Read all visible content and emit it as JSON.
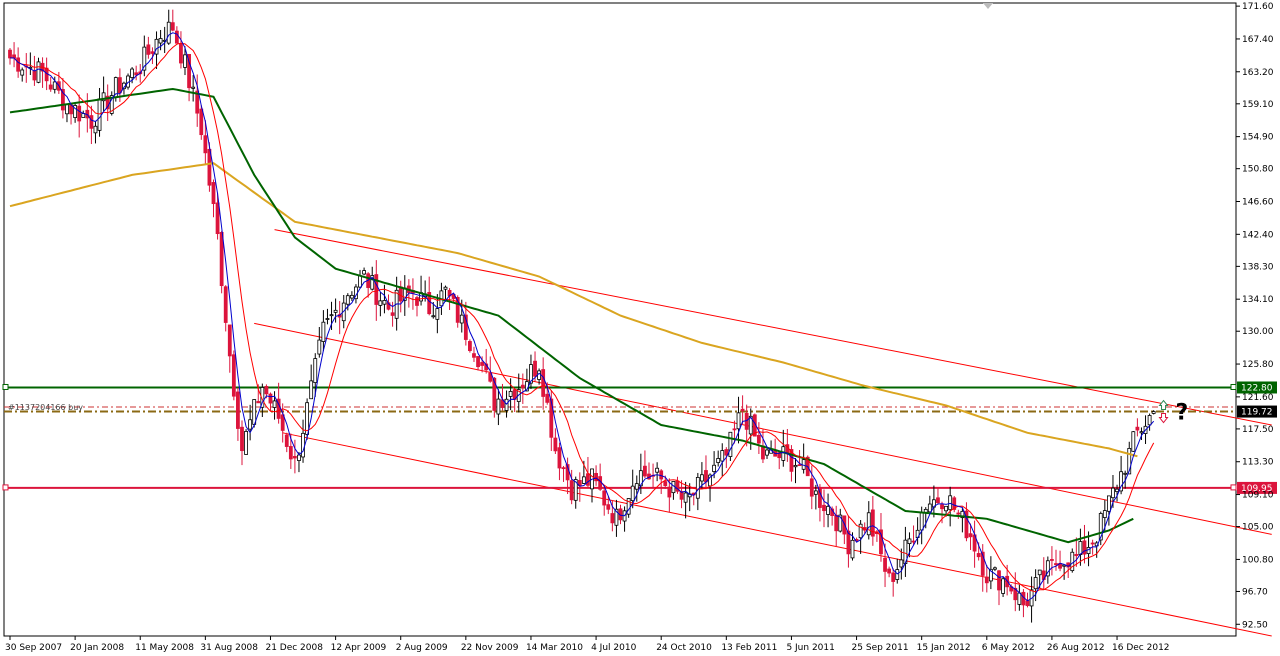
{
  "chart_data": {
    "type": "candlestick",
    "ylim": [
      91.0,
      172.0
    ],
    "y_ticks": [
      "171.60",
      "167.40",
      "163.20",
      "159.10",
      "154.90",
      "150.80",
      "146.60",
      "142.40",
      "138.30",
      "134.10",
      "130.00",
      "125.80",
      "121.60",
      "117.50",
      "113.30",
      "109.10",
      "105.00",
      "100.80",
      "96.70",
      "92.50"
    ],
    "y_tick_values": [
      171.6,
      167.4,
      163.2,
      159.1,
      154.9,
      150.8,
      146.6,
      142.4,
      138.3,
      134.1,
      130.0,
      125.8,
      121.6,
      117.5,
      113.3,
      109.1,
      105.0,
      100.8,
      96.7,
      92.5
    ],
    "x_ticks": [
      "30 Sep 2007",
      "20 Jan 2008",
      "11 May 2008",
      "31 Aug 2008",
      "21 Dec 2008",
      "12 Apr 2009",
      "2 Aug 2009",
      "22 Nov 2009",
      "14 Mar 2010",
      "4 Jul 2010",
      "24 Oct 2010",
      "13 Feb 2011",
      "5 Jun 2011",
      "25 Sep 2011",
      "15 Jan 2012",
      "6 May 2012",
      "26 Aug 2012",
      "16 Dec 2012"
    ],
    "x_tick_index": [
      0,
      16,
      32,
      48,
      64,
      80,
      96,
      112,
      128,
      144,
      160,
      176,
      192,
      208,
      224,
      240,
      256,
      272
    ],
    "bars_total": 282,
    "price_labels": {
      "green_level": "122.80",
      "red_level": "109.95",
      "current": "119.72"
    },
    "green_level": 122.8,
    "red_level": 109.95,
    "current": 119.72,
    "order_label": "#1137204166 buy",
    "order_level": 120.3,
    "annotation": "?",
    "key_closes": [
      {
        "i": 0,
        "v": 165
      },
      {
        "i": 8,
        "v": 163
      },
      {
        "i": 14,
        "v": 159
      },
      {
        "i": 20,
        "v": 157
      },
      {
        "i": 26,
        "v": 161
      },
      {
        "i": 32,
        "v": 164
      },
      {
        "i": 37,
        "v": 168
      },
      {
        "i": 40,
        "v": 169
      },
      {
        "i": 43,
        "v": 164
      },
      {
        "i": 47,
        "v": 156
      },
      {
        "i": 51,
        "v": 142
      },
      {
        "i": 54,
        "v": 127
      },
      {
        "i": 57,
        "v": 115
      },
      {
        "i": 62,
        "v": 123
      },
      {
        "i": 66,
        "v": 119
      },
      {
        "i": 70,
        "v": 113
      },
      {
        "i": 73,
        "v": 120
      },
      {
        "i": 77,
        "v": 130
      },
      {
        "i": 83,
        "v": 135
      },
      {
        "i": 87,
        "v": 137
      },
      {
        "i": 93,
        "v": 133
      },
      {
        "i": 99,
        "v": 135
      },
      {
        "i": 103,
        "v": 133
      },
      {
        "i": 107,
        "v": 135
      },
      {
        "i": 111,
        "v": 131
      },
      {
        "i": 115,
        "v": 127
      },
      {
        "i": 119,
        "v": 121
      },
      {
        "i": 125,
        "v": 123
      },
      {
        "i": 130,
        "v": 126
      },
      {
        "i": 134,
        "v": 115
      },
      {
        "i": 138,
        "v": 110
      },
      {
        "i": 143,
        "v": 111
      },
      {
        "i": 149,
        "v": 106
      },
      {
        "i": 154,
        "v": 112
      },
      {
        "i": 160,
        "v": 111
      },
      {
        "i": 166,
        "v": 108
      },
      {
        "i": 171,
        "v": 111
      },
      {
        "i": 176,
        "v": 114
      },
      {
        "i": 180,
        "v": 120
      },
      {
        "i": 185,
        "v": 114
      },
      {
        "i": 190,
        "v": 114
      },
      {
        "i": 194,
        "v": 113
      },
      {
        "i": 198,
        "v": 109
      },
      {
        "i": 202,
        "v": 107
      },
      {
        "i": 206,
        "v": 103
      },
      {
        "i": 211,
        "v": 106
      },
      {
        "i": 216,
        "v": 98
      },
      {
        "i": 220,
        "v": 102
      },
      {
        "i": 225,
        "v": 108
      },
      {
        "i": 230,
        "v": 109
      },
      {
        "i": 236,
        "v": 104
      },
      {
        "i": 240,
        "v": 99
      },
      {
        "i": 245,
        "v": 98
      },
      {
        "i": 249,
        "v": 95
      },
      {
        "i": 253,
        "v": 98
      },
      {
        "i": 258,
        "v": 101
      },
      {
        "i": 262,
        "v": 101
      },
      {
        "i": 267,
        "v": 104
      },
      {
        "i": 270,
        "v": 108
      },
      {
        "i": 274,
        "v": 113
      },
      {
        "i": 277,
        "v": 117
      },
      {
        "i": 281,
        "v": 119.72
      }
    ],
    "ma200_points": [
      [
        0,
        146
      ],
      [
        30,
        150
      ],
      [
        50,
        151.5
      ],
      [
        70,
        144
      ],
      [
        90,
        142
      ],
      [
        110,
        140
      ],
      [
        130,
        137
      ],
      [
        150,
        132
      ],
      [
        170,
        128.5
      ],
      [
        190,
        126
      ],
      [
        210,
        123
      ],
      [
        230,
        120.5
      ],
      [
        250,
        117
      ],
      [
        270,
        115
      ],
      [
        277,
        114
      ]
    ],
    "ma50_points": [
      [
        0,
        158
      ],
      [
        20,
        159.5
      ],
      [
        40,
        161
      ],
      [
        50,
        160
      ],
      [
        60,
        150
      ],
      [
        70,
        142
      ],
      [
        80,
        138
      ],
      [
        100,
        135
      ],
      [
        120,
        132
      ],
      [
        140,
        124
      ],
      [
        160,
        118
      ],
      [
        180,
        116
      ],
      [
        200,
        113
      ],
      [
        220,
        107
      ],
      [
        240,
        106
      ],
      [
        260,
        103
      ],
      [
        270,
        104.5
      ],
      [
        276,
        106
      ]
    ],
    "channel_lines": [
      {
        "name": "upper",
        "from": [
          65,
          143
        ],
        "to": [
          310,
          118
        ]
      },
      {
        "name": "middle",
        "from": [
          60,
          131
        ],
        "to": [
          310,
          104
        ]
      },
      {
        "name": "lower",
        "from": [
          67,
          117
        ],
        "to": [
          310,
          91
        ]
      }
    ],
    "colors": {
      "bull": "#000000",
      "bear": "#dc143c",
      "ma200": "#daa520",
      "ma50": "#006400",
      "ma_fast": "#ff0000",
      "ma_faster": "#0000cd",
      "green_level": "#006400",
      "red_level": "#dc143c",
      "current_box": "#000000"
    }
  }
}
